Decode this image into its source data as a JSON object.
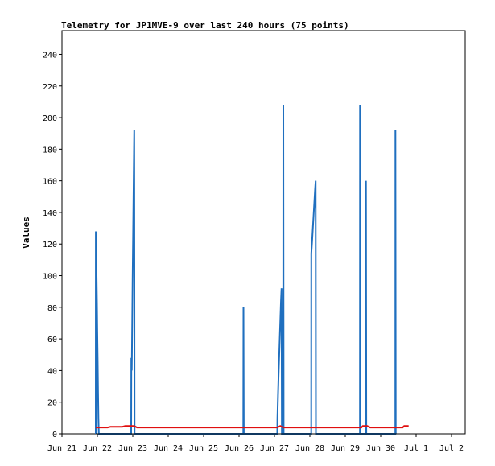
{
  "chart_data": {
    "type": "line",
    "title": "Telemetry for JP1MVE-9 over last 240 hours (75 points)",
    "xlabel": "",
    "ylabel": "Values",
    "ylim": [
      0,
      255
    ],
    "xlim": [
      0,
      240
    ],
    "grid": false,
    "x_tick_labels": [
      "Jun 21",
      "Jun 22",
      "Jun 23",
      "Jun 24",
      "Jun 25",
      "Jun 26",
      "Jun 27",
      "Jun 28",
      "Jun 29",
      "Jun 30",
      "Jul 1",
      "Jul 2"
    ],
    "x_tick_hours": [
      0,
      24,
      48,
      72,
      96,
      120,
      144,
      168,
      192,
      216,
      240,
      264
    ],
    "y_ticks": [
      0,
      20,
      40,
      60,
      80,
      100,
      120,
      140,
      160,
      180,
      200,
      220,
      240
    ],
    "series": [
      {
        "name": "",
        "color": "#1f6fbf",
        "points": [
          [
            0.0,
            0
          ],
          [
            0.05,
            128
          ],
          [
            0.3,
            118
          ],
          [
            0.55,
            100
          ],
          [
            0.8,
            82
          ],
          [
            1.05,
            64
          ],
          [
            1.3,
            46
          ],
          [
            1.55,
            28
          ],
          [
            1.8,
            10
          ],
          [
            2.05,
            0
          ],
          [
            24.0,
            0
          ],
          [
            24.1,
            48
          ],
          [
            24.4,
            40
          ],
          [
            24.7,
            70
          ],
          [
            25.0,
            98
          ],
          [
            25.3,
            125
          ],
          [
            25.6,
            150
          ],
          [
            25.9,
            178
          ],
          [
            26.1,
            192
          ],
          [
            26.3,
            0
          ],
          [
            100.0,
            0
          ],
          [
            100.1,
            80
          ],
          [
            100.3,
            0
          ],
          [
            123.0,
            0
          ],
          [
            123.1,
            10
          ],
          [
            123.5,
            24
          ],
          [
            124.0,
            40
          ],
          [
            124.5,
            56
          ],
          [
            125.0,
            70
          ],
          [
            125.5,
            84
          ],
          [
            125.9,
            92
          ],
          [
            126.1,
            0
          ],
          [
            127.0,
            0
          ],
          [
            127.1,
            208
          ],
          [
            127.3,
            0
          ],
          [
            146.0,
            0
          ],
          [
            146.1,
            114
          ],
          [
            146.6,
            122
          ],
          [
            147.1,
            130
          ],
          [
            147.6,
            138
          ],
          [
            148.1,
            146
          ],
          [
            148.6,
            154
          ],
          [
            149.0,
            160
          ],
          [
            149.2,
            0
          ],
          [
            179.0,
            0
          ],
          [
            179.1,
            208
          ],
          [
            179.3,
            0
          ],
          [
            183.0,
            0
          ],
          [
            183.1,
            160
          ],
          [
            183.3,
            0
          ],
          [
            203.0,
            0
          ],
          [
            203.1,
            192
          ],
          [
            203.3,
            0
          ]
        ]
      },
      {
        "name": "",
        "color": "#e01010",
        "points": [
          [
            0,
            4
          ],
          [
            8,
            4
          ],
          [
            10,
            4.5
          ],
          [
            18,
            4.5
          ],
          [
            20,
            5
          ],
          [
            26,
            5
          ],
          [
            28,
            4
          ],
          [
            123,
            4
          ],
          [
            125,
            5
          ],
          [
            127,
            4
          ],
          [
            150,
            4
          ],
          [
            152,
            4
          ],
          [
            180,
            4
          ],
          [
            181,
            5
          ],
          [
            184,
            5
          ],
          [
            186,
            4
          ],
          [
            208,
            4
          ],
          [
            209,
            5
          ],
          [
            212,
            5
          ]
        ]
      },
      {
        "name": "",
        "color": "#000000",
        "points": [
          [
            0,
            0
          ],
          [
            212,
            0
          ]
        ]
      }
    ]
  }
}
